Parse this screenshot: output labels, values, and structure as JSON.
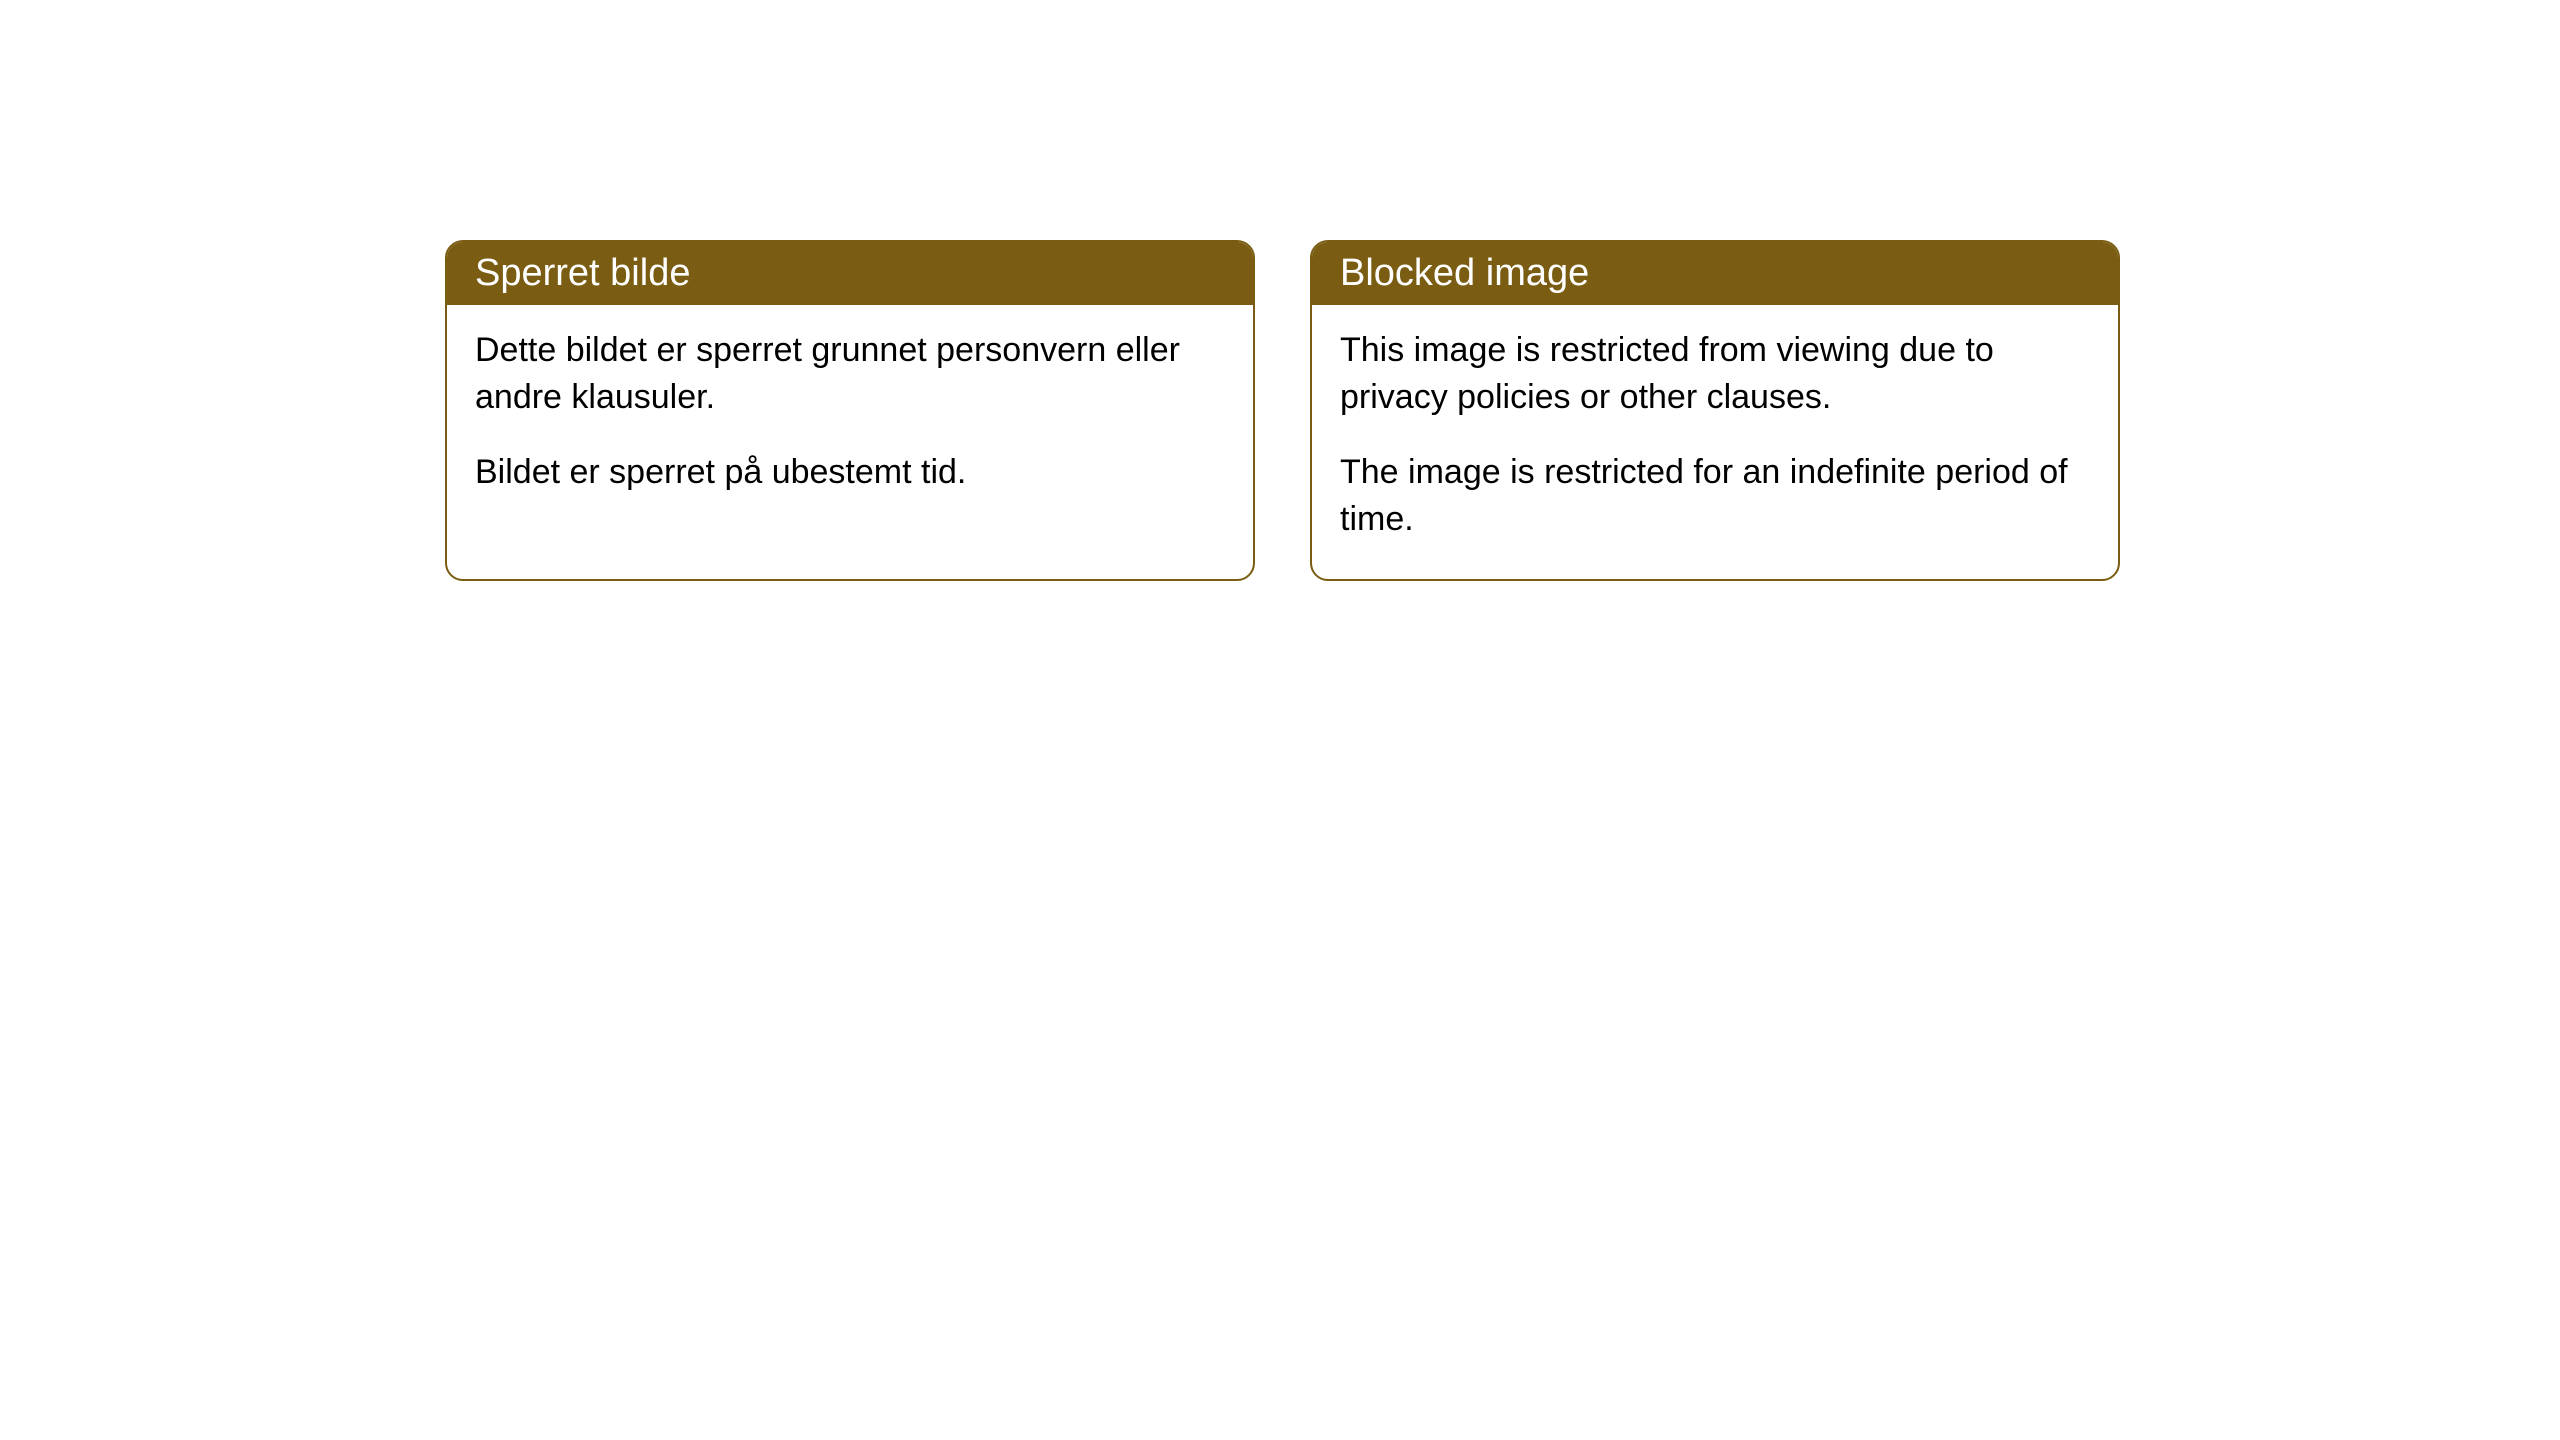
{
  "cards": [
    {
      "title": "Sperret bilde",
      "paragraph1": "Dette bildet er sperret grunnet personvern eller andre klausuler.",
      "paragraph2": "Bildet er sperret på ubestemt tid."
    },
    {
      "title": "Blocked image",
      "paragraph1": "This image is restricted from viewing due to privacy policies or other clauses.",
      "paragraph2": "The image is restricted for an indefinite period of time."
    }
  ],
  "style": {
    "header_bg": "#7a5d12",
    "header_text_color": "#ffffff",
    "border_color": "#7a5d12",
    "body_text_color": "#000000",
    "background_color": "#ffffff",
    "border_radius": 18,
    "header_fontsize": 38,
    "body_fontsize": 34
  }
}
